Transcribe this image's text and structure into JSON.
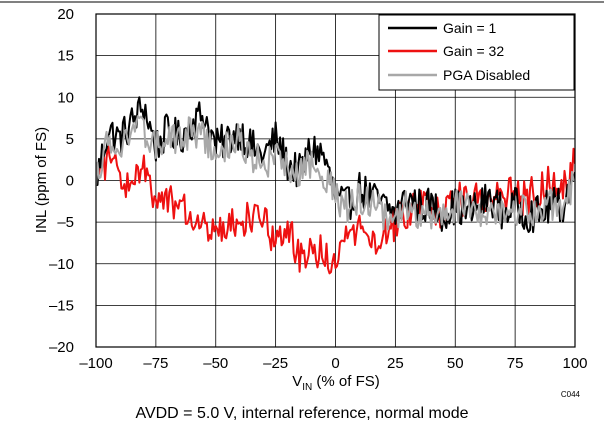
{
  "chart_data": {
    "type": "line",
    "title": "",
    "xlabel_main": "V",
    "xlabel_sub": "IN",
    "xlabel_rest": " (% of FS)",
    "ylabel": "INL (ppm of FS)",
    "xlim": [
      -100,
      100
    ],
    "ylim": [
      -20,
      20
    ],
    "x_ticks": [
      -100,
      -75,
      -50,
      -25,
      0,
      25,
      50,
      75,
      100
    ],
    "x_tick_labels": [
      "–100",
      "–75",
      "–50",
      "–25",
      "0",
      "25",
      "50",
      "75",
      "100"
    ],
    "y_ticks": [
      20,
      15,
      10,
      5,
      0,
      -5,
      -10,
      -15,
      -20
    ],
    "y_tick_labels": [
      "20",
      "15",
      "10",
      "5",
      "0",
      "–5",
      "–10",
      "–15",
      "–20"
    ],
    "grid": true,
    "legend_position": "top-right",
    "x": [
      -100,
      -95,
      -90,
      -85,
      -80,
      -75,
      -70,
      -65,
      -60,
      -55,
      -50,
      -45,
      -40,
      -35,
      -30,
      -25,
      -20,
      -15,
      -10,
      -5,
      0,
      5,
      10,
      15,
      20,
      25,
      30,
      35,
      40,
      45,
      50,
      55,
      60,
      65,
      70,
      75,
      80,
      85,
      90,
      95,
      100
    ],
    "series": [
      {
        "name": "Gain = 1",
        "color": "#000000",
        "values": [
          0,
          6,
          5,
          7,
          9,
          4,
          6,
          5,
          7,
          8,
          4,
          5,
          6,
          4,
          3,
          5,
          2,
          1,
          4,
          3,
          -2,
          -3,
          -1,
          -2,
          -3,
          -4,
          -2,
          -3,
          -3,
          -4,
          -3,
          -4,
          -3,
          -2,
          -4,
          -3,
          -4,
          -4,
          -3,
          -3,
          1
        ],
        "fluct": 2.2
      },
      {
        "name": "Gain = 32",
        "color": "#ee1111",
        "values": [
          0,
          3,
          1,
          -1,
          1,
          -3,
          -2,
          -3,
          -4,
          -6,
          -7,
          -6,
          -5,
          -4,
          -5,
          -7,
          -6,
          -9,
          -8,
          -9,
          -10,
          -7,
          -6,
          -8,
          -6,
          -5,
          -4,
          -3,
          -3,
          -4,
          -2,
          -3,
          -2,
          -2,
          -1,
          -2,
          -2,
          -1,
          0,
          -1,
          2
        ],
        "fluct": 2.2
      },
      {
        "name": "PGA Disabled",
        "color": "#a8a8a8",
        "values": [
          0,
          5,
          4,
          6,
          6,
          4,
          5,
          5,
          6,
          5,
          3,
          4,
          5,
          3,
          2,
          3,
          2,
          1,
          2,
          1,
          -2,
          -3,
          -2,
          -3,
          -4,
          -4,
          -3,
          -4,
          -4,
          -4,
          -3,
          -3,
          -4,
          -3,
          -4,
          -4,
          -3,
          -4,
          -3,
          -3,
          0
        ],
        "fluct": 2.0
      }
    ],
    "chart_code": "C044"
  },
  "caption": "AVDD = 5.0 V, internal reference, normal mode"
}
